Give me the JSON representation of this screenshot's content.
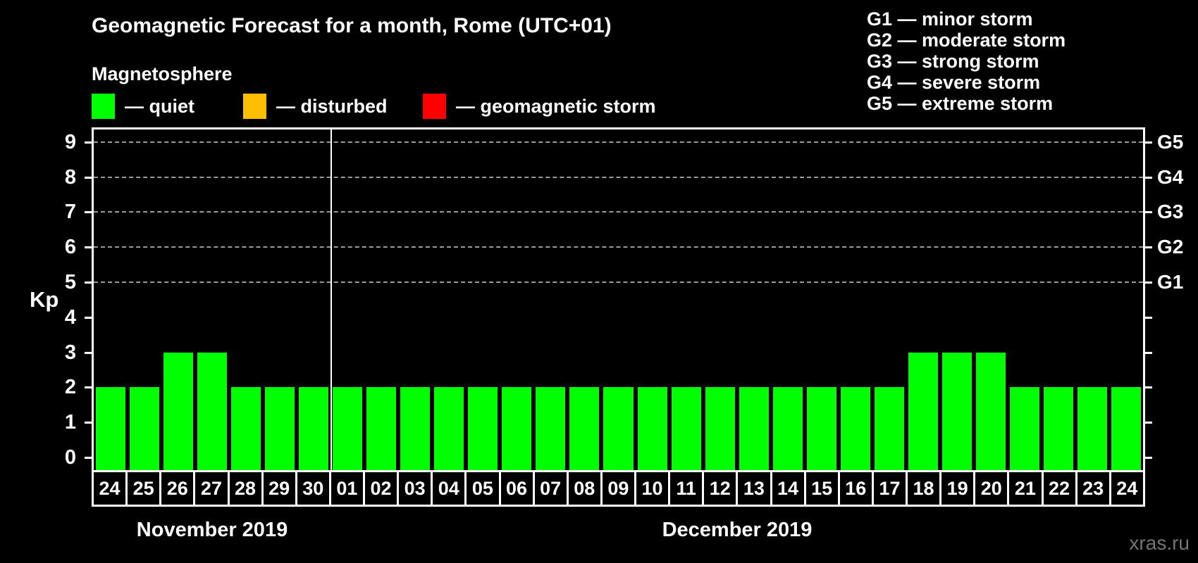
{
  "title": "Geomagnetic Forecast for a month, Rome (UTC+01)",
  "subtitle": "Magnetosphere",
  "legend": {
    "items": [
      {
        "name": "quiet",
        "label": "— quiet",
        "color": "#00ff00"
      },
      {
        "name": "disturbed",
        "label": "— disturbed",
        "color": "#ffbe00"
      },
      {
        "name": "geomagnetic-storm",
        "label": "— geomagnetic storm",
        "color": "#ff0000"
      }
    ]
  },
  "storm_scale": [
    "G1 — minor storm",
    "G2 — moderate storm",
    "G3 — strong storm",
    "G4 — severe storm",
    "G5 — extreme storm"
  ],
  "watermark": "xras.ru",
  "chart_data": {
    "type": "bar",
    "title": "Geomagnetic Forecast for a month, Rome (UTC+01)",
    "ylabel": "Kp",
    "ylim": [
      0,
      9
    ],
    "y_ticks": [
      0,
      1,
      2,
      3,
      4,
      5,
      6,
      7,
      8,
      9
    ],
    "grid": "dashed horizontal lines at storm levels only",
    "grid_levels": [
      5,
      6,
      7,
      8,
      9
    ],
    "right_axis": [
      {
        "label": "G1",
        "kp": 5
      },
      {
        "label": "G2",
        "kp": 6
      },
      {
        "label": "G3",
        "kp": 7
      },
      {
        "label": "G4",
        "kp": 8
      },
      {
        "label": "G5",
        "kp": 9
      }
    ],
    "bar_color": "#00ff00",
    "legend_position": "top",
    "months": [
      {
        "label": "November 2019",
        "days": [
          "24",
          "25",
          "26",
          "27",
          "28",
          "29",
          "30"
        ],
        "values": [
          2,
          2,
          3,
          3,
          2,
          2,
          2
        ]
      },
      {
        "label": "December 2019",
        "days": [
          "01",
          "02",
          "03",
          "04",
          "05",
          "06",
          "07",
          "08",
          "09",
          "10",
          "11",
          "12",
          "13",
          "14",
          "15",
          "16",
          "17",
          "18",
          "19",
          "20",
          "21",
          "22",
          "23",
          "24"
        ],
        "values": [
          2,
          2,
          2,
          2,
          2,
          2,
          2,
          2,
          2,
          2,
          2,
          2,
          2,
          2,
          2,
          2,
          2,
          3,
          3,
          3,
          2,
          2,
          2,
          2
        ]
      }
    ]
  }
}
